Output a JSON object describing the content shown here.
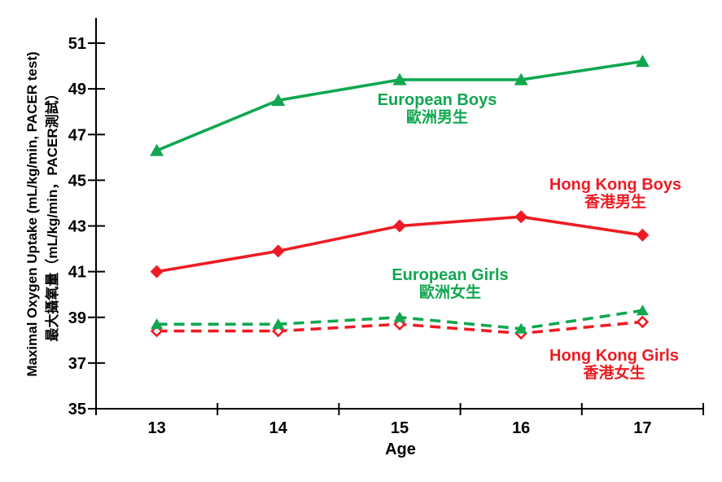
{
  "chart_data": {
    "type": "line",
    "x_label": "Age",
    "y_title_en": "Maximal Oxygen Uptake (mL/kg/min, PACER test)",
    "y_title_zh": "最大攝氧量（mL/kg/min，PACER測試）",
    "categories": [
      "13",
      "14",
      "15",
      "16",
      "17"
    ],
    "y_ticks": [
      35,
      37,
      39,
      41,
      43,
      45,
      47,
      49,
      51
    ],
    "ylim": [
      35,
      52
    ],
    "grid": false,
    "legend_position": "inline-annotations-near-lines",
    "colors": {
      "green": "#10A750",
      "red": "#ED1C24",
      "axis": "#000000"
    },
    "series": [
      {
        "name": "european-boys",
        "label_en": "European Boys",
        "label_zh": "歐洲男生",
        "color": "#10A750",
        "line_style": "solid",
        "marker": "triangle",
        "marker_fill": "solid",
        "values": [
          46.3,
          48.5,
          49.4,
          49.4,
          50.2
        ]
      },
      {
        "name": "hong-kong-boys",
        "label_en": "Hong Kong Boys",
        "label_zh": "香港男生",
        "color": "#ED1C24",
        "line_style": "solid",
        "marker": "diamond",
        "marker_fill": "solid",
        "values": [
          41.0,
          41.9,
          43.0,
          43.4,
          42.6
        ]
      },
      {
        "name": "european-girls",
        "label_en": "European Girls",
        "label_zh": "歐洲女生",
        "color": "#10A750",
        "line_style": "dashed",
        "marker": "triangle",
        "marker_fill": "solid",
        "values": [
          38.7,
          38.7,
          39.0,
          38.5,
          39.3
        ]
      },
      {
        "name": "hong-kong-girls",
        "label_en": "Hong Kong Girls",
        "label_zh": "香港女生",
        "color": "#ED1C24",
        "line_style": "dashed",
        "marker": "diamond",
        "marker_fill": "open",
        "values": [
          38.4,
          38.4,
          38.7,
          38.3,
          38.8
        ]
      }
    ]
  }
}
